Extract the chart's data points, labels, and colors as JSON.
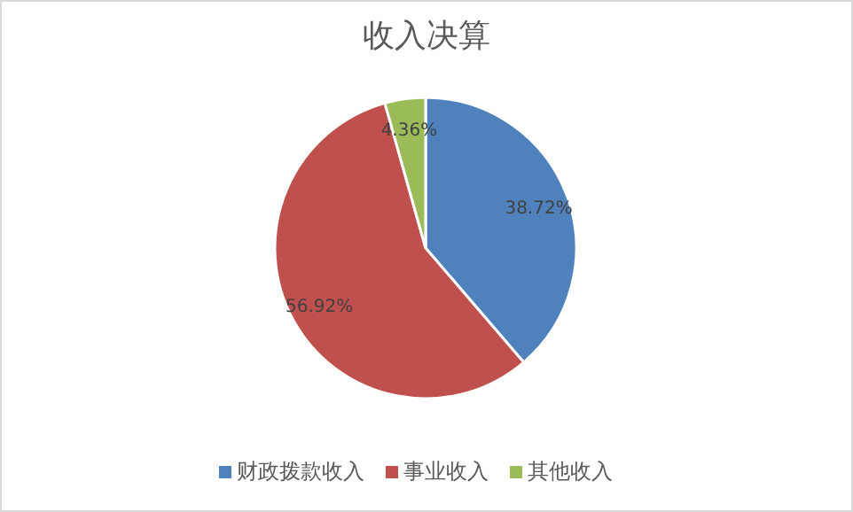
{
  "chart_data": {
    "type": "pie",
    "title": "收入决算",
    "categories": [
      "财政拨款收入",
      "事业收入",
      "其他收入"
    ],
    "values": [
      38.72,
      56.92,
      4.36
    ],
    "colors": [
      "#4f81bd",
      "#c0504d",
      "#9bbb59"
    ],
    "value_labels": [
      "38.72%",
      "56.92%",
      "4.36%"
    ],
    "legend": "bottom"
  }
}
